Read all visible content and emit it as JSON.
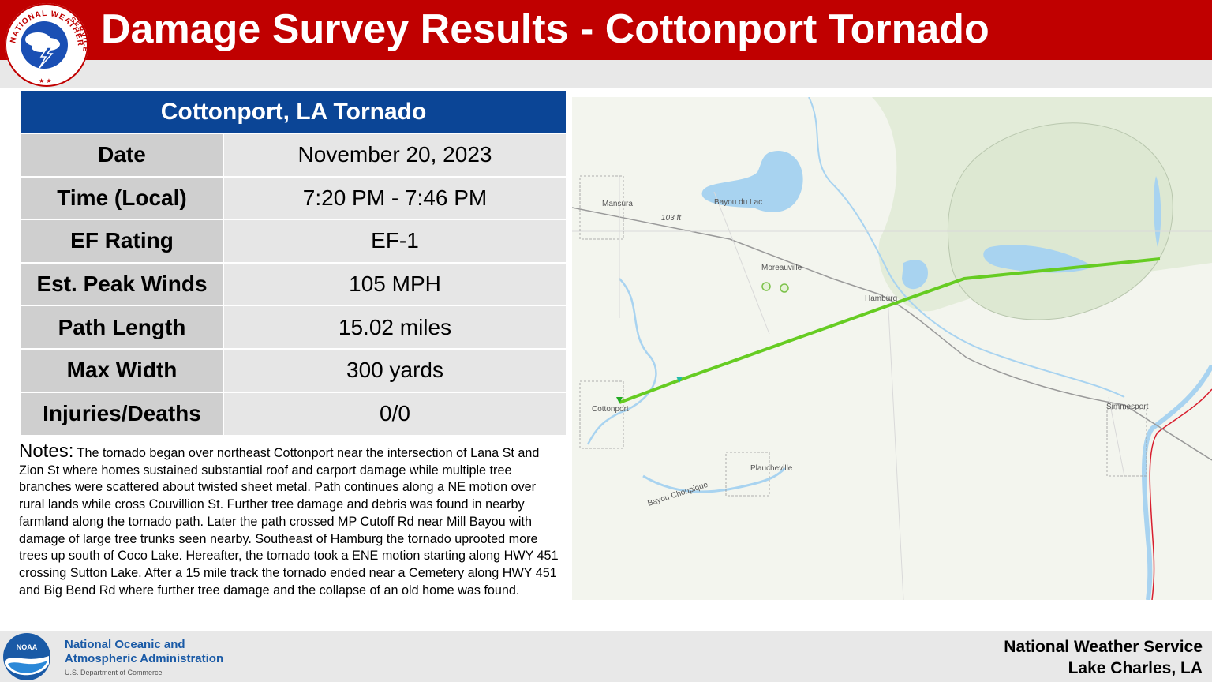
{
  "header": {
    "title": "Damage Survey Results - Cottonport Tornado",
    "logo_text_top": "NATIONAL WEATHER",
    "logo_text_side": "SERVICE",
    "color": "#c00000"
  },
  "summary_table": {
    "heading": "Cottonport, LA Tornado",
    "heading_color": "#0b4596",
    "rows": [
      {
        "label": "Date",
        "value": "November 20, 2023"
      },
      {
        "label": "Time (Local)",
        "value": "7:20 PM - 7:46 PM"
      },
      {
        "label": "EF Rating",
        "value": "EF-1"
      },
      {
        "label": "Est. Peak Winds",
        "value": "105 MPH"
      },
      {
        "label": "Path Length",
        "value": "15.02 miles"
      },
      {
        "label": "Max Width",
        "value": "300 yards"
      },
      {
        "label": "Injuries/Deaths",
        "value": "0/0"
      }
    ]
  },
  "notes": {
    "label": "Notes:",
    "text": "The tornado began over northeast Cottonport near the intersection of Lana St and Zion St where homes sustained substantial roof and carport damage while multiple tree branches were scattered about twisted sheet metal. Path continues along a NE motion over rural lands while cross Couvillion St. Further tree damage and debris was found in nearby farmland along the tornado path. Later the path crossed MP Cutoff Rd near Mill Bayou with damage of large tree trunks seen nearby. Southeast of Hamburg the tornado uprooted more trees up south of Coco Lake. Hereafter, the tornado took a ENE motion starting along HWY 451 crossing Sutton Lake. After a 15 mile track the tornado ended near a Cemetery along HWY 451 and Big Bend Rd where further tree damage and the collapse of an old home was found."
  },
  "map": {
    "labels": {
      "mansura": "Mansura",
      "elevation": "103 ft",
      "bayou_du_lac": "Bayou du Lac",
      "moreauville": "Moreauville",
      "hamburg": "Hamburg",
      "cottonport": "Cottonport",
      "simmesport": "Simmesport",
      "plaucheville": "Plaucheville",
      "bayou_choupique": "Bayou Choupique"
    },
    "track_color": "#66cc22",
    "water_color": "#a8d3f0",
    "river_boundary_color": "#d81e2e"
  },
  "footer": {
    "agency_line1": "National Oceanic and",
    "agency_line2": "Atmospheric Administration",
    "department": "U.S. Department of Commerce",
    "noaa_logo_text": "NOAA",
    "office_line1": "National Weather Service",
    "office_line2": "Lake Charles, LA"
  }
}
